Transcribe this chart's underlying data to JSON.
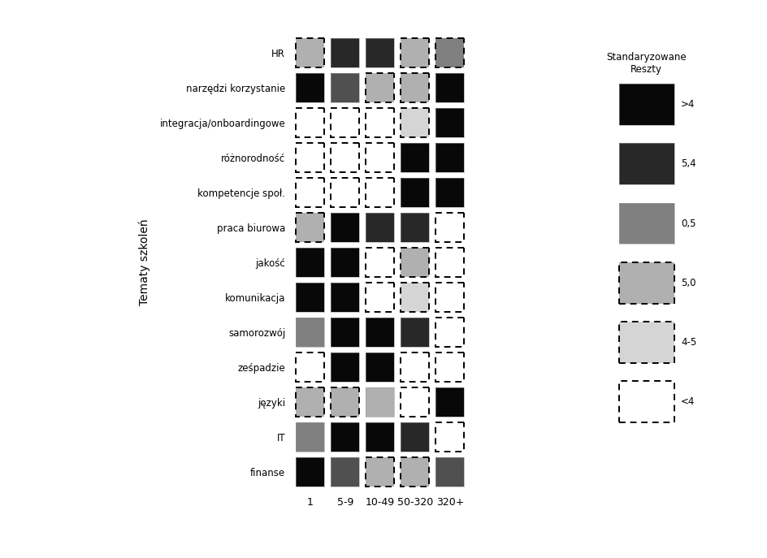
{
  "topics_display": [
    "finanse",
    "IT",
    "języki",
    "ześpadzie",
    "samorozwój",
    "komunikacja",
    "jakość",
    "praca biurowa",
    "kompetencje społ.",
    "różnorodność",
    "integracja/onboardingowe",
    "narzędzi korzystanie",
    "HR"
  ],
  "company_sizes": [
    "1",
    "5-9",
    "10-49",
    "50-320",
    "320+"
  ],
  "legend_title": "Standaryzowane\nReszty",
  "legend_labels": [
    "<4",
    "4-5",
    "5,0",
    "0,5",
    "5,4",
    ">4"
  ],
  "legend_dashed": [
    true,
    true,
    true,
    false,
    false,
    false
  ],
  "color_levels": {
    "0": "#ffffff",
    "1": "#d5d5d5",
    "2": "#b0b0b0",
    "3": "#808080",
    "4": "#505050",
    "5": "#282828",
    "6": "#080808"
  },
  "matrix": {
    "colors": [
      [
        3,
        2,
        5,
        5,
        2
      ],
      [
        6,
        2,
        2,
        4,
        6
      ],
      [
        6,
        1,
        0,
        0,
        0
      ],
      [
        6,
        6,
        0,
        0,
        0
      ],
      [
        6,
        6,
        0,
        0,
        0
      ],
      [
        0,
        5,
        5,
        6,
        2
      ],
      [
        0,
        2,
        0,
        6,
        6
      ],
      [
        0,
        1,
        0,
        6,
        6
      ],
      [
        0,
        5,
        6,
        6,
        3
      ],
      [
        0,
        0,
        6,
        6,
        0
      ],
      [
        6,
        0,
        2,
        2,
        2
      ],
      [
        0,
        5,
        6,
        6,
        3
      ],
      [
        4,
        2,
        2,
        4,
        6
      ]
    ],
    "dashed": [
      [
        true,
        true,
        false,
        false,
        true
      ],
      [
        false,
        true,
        true,
        false,
        false
      ],
      [
        false,
        true,
        true,
        true,
        true
      ],
      [
        false,
        false,
        true,
        true,
        true
      ],
      [
        false,
        false,
        true,
        true,
        true
      ],
      [
        true,
        false,
        false,
        false,
        true
      ],
      [
        true,
        true,
        true,
        false,
        false
      ],
      [
        true,
        true,
        true,
        false,
        false
      ],
      [
        true,
        false,
        false,
        false,
        false
      ],
      [
        true,
        true,
        false,
        false,
        true
      ],
      [
        false,
        true,
        false,
        true,
        true
      ],
      [
        true,
        false,
        false,
        false,
        false
      ],
      [
        false,
        true,
        true,
        false,
        false
      ]
    ]
  },
  "ylabel": "Tematy szkoleń",
  "background_color": "#ffffff",
  "figsize": [
    9.45,
    6.87
  ],
  "dpi": 100
}
